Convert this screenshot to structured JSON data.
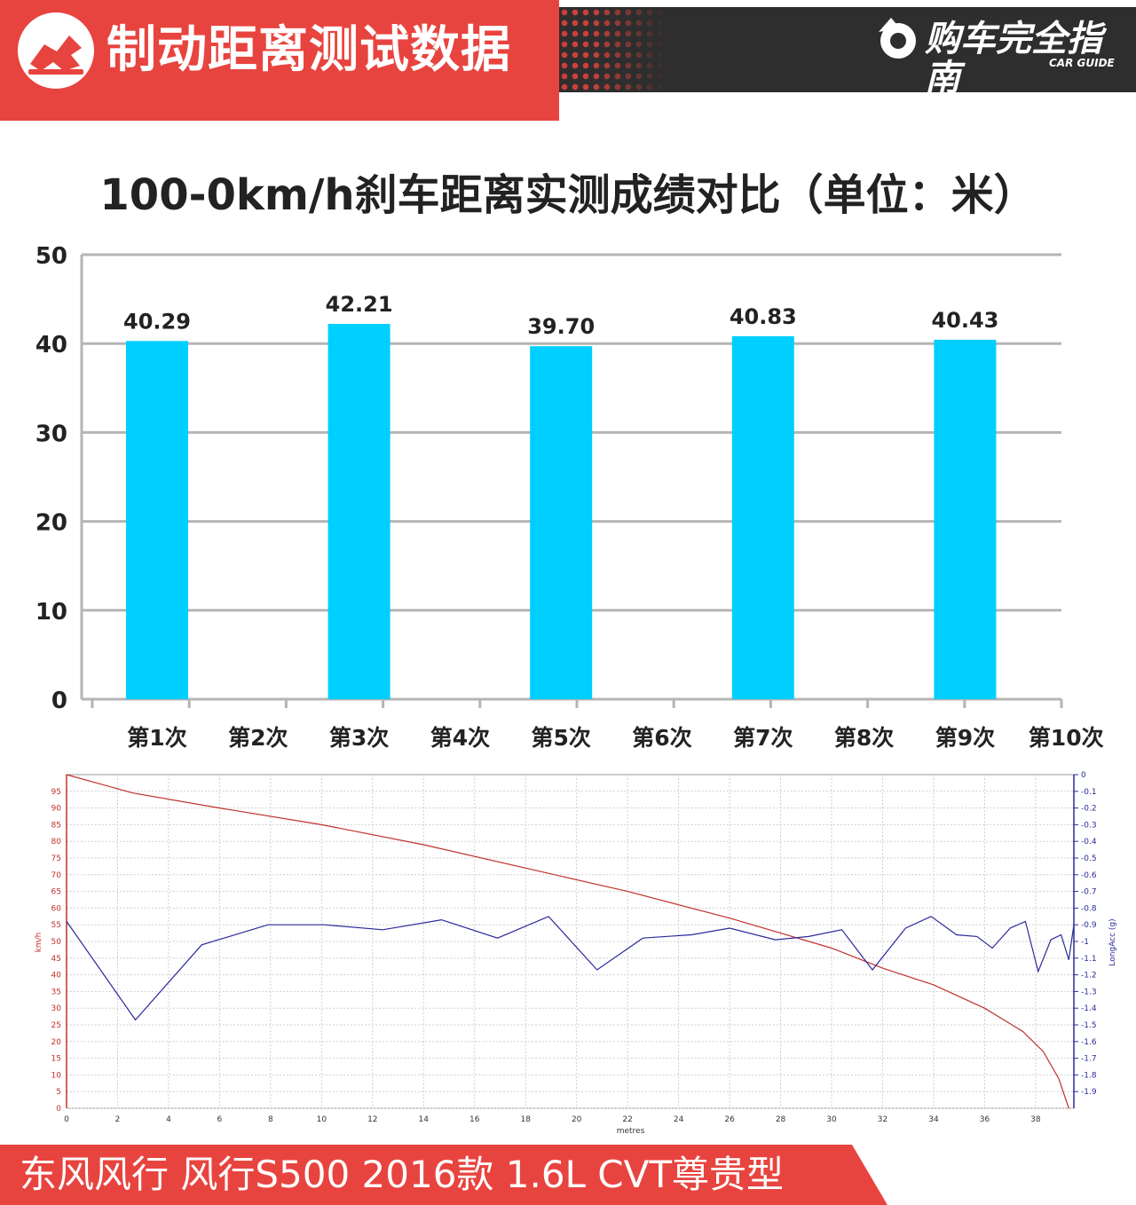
{
  "header": {
    "title": "制动距离测试数据",
    "brand_name": "购车完全指南",
    "brand_sub": "CAR GUIDE",
    "accent_color": "#e8443f",
    "dark_color": "#2e2e2e"
  },
  "chart_data": [
    {
      "type": "bar",
      "title": "100-0km/h刹车距离实测成绩对比（单位：米）",
      "categories": [
        "第1次",
        "第2次",
        "第3次",
        "第4次",
        "第5次",
        "第6次",
        "第7次",
        "第8次",
        "第9次",
        "第10次"
      ],
      "values": [
        40.29,
        null,
        42.21,
        null,
        39.7,
        null,
        40.83,
        null,
        40.43,
        null
      ],
      "value_labels": [
        "40.29",
        "",
        "42.21",
        "",
        "39.70",
        "",
        "40.83",
        "",
        "40.43",
        ""
      ],
      "ylim": [
        0,
        50
      ],
      "yticks": [
        0,
        10,
        20,
        30,
        40,
        50
      ],
      "grid": true,
      "bar_color": "#00cfff"
    },
    {
      "type": "line",
      "xlabel": "metres",
      "ylabel_left": "km/h",
      "ylabel_right": "LongAcc (g)",
      "xlim": [
        0,
        39.5
      ],
      "xticks": [
        0,
        2,
        4,
        6,
        8,
        10,
        12,
        14,
        16,
        18,
        20,
        22,
        24,
        26,
        28,
        30,
        32,
        34,
        36,
        38
      ],
      "ylim_left": [
        0,
        100
      ],
      "yticks_left": [
        0,
        5,
        10,
        15,
        20,
        25,
        30,
        35,
        40,
        45,
        50,
        55,
        60,
        65,
        70,
        75,
        80,
        85,
        90,
        95
      ],
      "ylim_right": [
        -2,
        0
      ],
      "yticks_right": [
        "0",
        "-0.1",
        "-0.2",
        "-0.3",
        "-0.4",
        "-0.5",
        "-0.6",
        "-0.7",
        "-0.8",
        "-0.9",
        "-1",
        "-1.1",
        "-1.2",
        "-1.3",
        "-1.4",
        "-1.5",
        "-1.6",
        "-1.7",
        "-1.8",
        "-1.9"
      ],
      "grid": true,
      "series": [
        {
          "axis": "left",
          "color": "#c0302a",
          "x": [
            0,
            2.6,
            6,
            10,
            14,
            18,
            22,
            26,
            30,
            32,
            34,
            36,
            37.5,
            38.3,
            38.9,
            39.3
          ],
          "y": [
            100,
            94.5,
            90,
            85,
            79,
            72,
            65,
            57,
            48,
            42,
            37,
            30,
            23,
            17,
            9,
            0
          ]
        },
        {
          "axis": "right",
          "color": "#2a2a9a",
          "x": [
            0,
            2.7,
            5.3,
            7.9,
            10.1,
            12.4,
            14.7,
            16.9,
            18.9,
            20.8,
            22.6,
            24.5,
            26.0,
            27.8,
            29.1,
            30.4,
            31.6,
            32.9,
            33.9,
            34.9,
            35.7,
            36.3,
            37.0,
            37.6,
            38.1,
            38.6,
            39.0,
            39.3,
            39.5
          ],
          "y": [
            -0.88,
            -1.47,
            -1.02,
            -0.9,
            -0.9,
            -0.93,
            -0.87,
            -0.98,
            -0.85,
            -1.17,
            -0.98,
            -0.96,
            -0.92,
            -0.99,
            -0.97,
            -0.93,
            -1.17,
            -0.92,
            -0.85,
            -0.96,
            -0.97,
            -1.04,
            -0.92,
            -0.88,
            -1.18,
            -0.99,
            -0.96,
            -1.11,
            -0.9
          ]
        }
      ]
    }
  ],
  "footer": {
    "text": "东风风行 风行S500 2016款 1.6L CVT尊贵型"
  }
}
